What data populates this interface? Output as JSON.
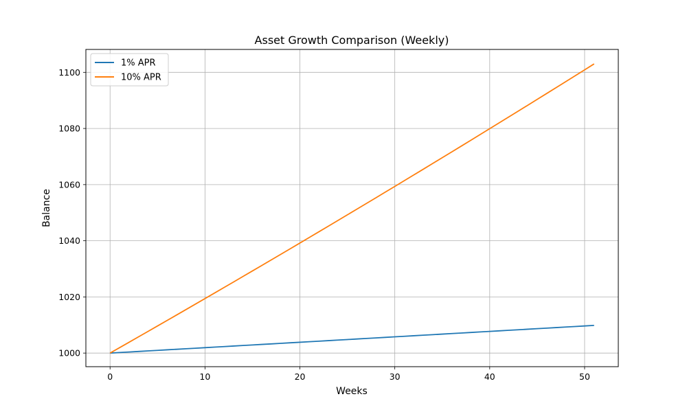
{
  "chart_data": {
    "type": "line",
    "title": "Asset Growth Comparison (Weekly)",
    "xlabel": "Weeks",
    "ylabel": "Balance",
    "xlim": [
      -2.55,
      53.55
    ],
    "ylim": [
      995.15,
      1108.15
    ],
    "xticks": [
      0,
      10,
      20,
      30,
      40,
      50
    ],
    "yticks": [
      1000,
      1020,
      1040,
      1060,
      1080,
      1100
    ],
    "grid": true,
    "legend_position": "top-left",
    "series": [
      {
        "name": "1% APR",
        "color": "#1f77b4",
        "start": 1000,
        "end": 1009.85,
        "x_start": 0,
        "x_end": 51
      },
      {
        "name": "10% APR",
        "color": "#ff7f0e",
        "start": 1000,
        "end": 1103,
        "x_start": 0,
        "x_end": 51
      }
    ]
  }
}
